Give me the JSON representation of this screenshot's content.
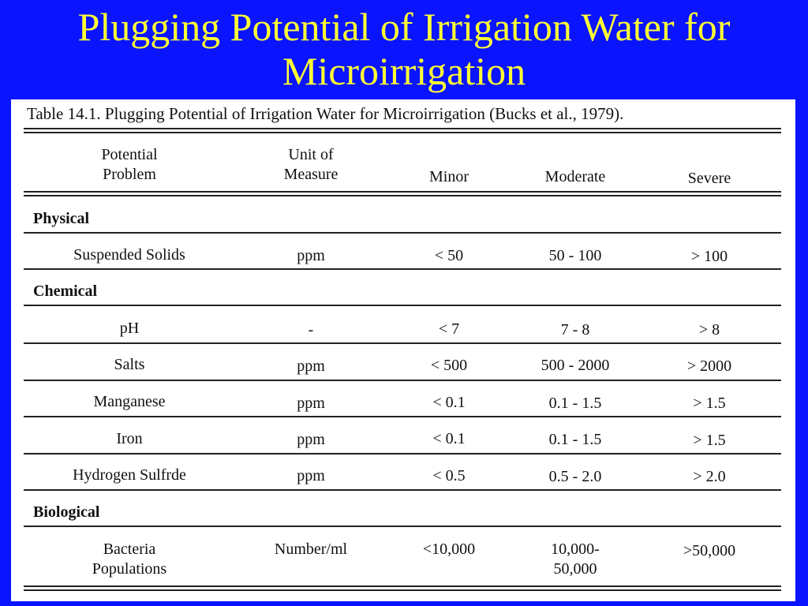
{
  "slide": {
    "title_line1": "Plugging Potential of Irrigation Water for",
    "title_line2": "Microirrigation"
  },
  "table": {
    "caption": "Table 14.1.  Plugging Potential of Irrigation Water for Microirrigation (Bucks et al., 1979).",
    "headers": {
      "problem_line1": "Potential",
      "problem_line2": "Problem",
      "unit_line1": "Unit of",
      "unit_line2": "Measure",
      "minor": "Minor",
      "moderate": "Moderate",
      "severe": "Severe"
    },
    "sections": {
      "physical": "Physical",
      "chemical": "Chemical",
      "biological": "Biological"
    },
    "rows": {
      "suspended_solids": [
        "Suspended Solids",
        "ppm",
        "< 50",
        "50 - 100",
        "> 100"
      ],
      "ph": [
        "pH",
        "-",
        "< 7",
        "7 - 8",
        "> 8"
      ],
      "salts": [
        "Salts",
        "ppm",
        "< 500",
        "500 - 2000",
        "> 2000"
      ],
      "manganese": [
        "Manganese",
        "ppm",
        "< 0.1",
        "0.1 - 1.5",
        "> 1.5"
      ],
      "iron": [
        "Iron",
        "ppm",
        "< 0.1",
        "0.1 - 1.5",
        "> 1.5"
      ],
      "hydrogen_sulfide": [
        "Hydrogen Sulfrde",
        "ppm",
        "< 0.5",
        "0.5 - 2.0",
        "> 2.0"
      ]
    },
    "bacteria": {
      "problem_line1": "Bacteria",
      "problem_line2": "Populations",
      "unit": "Number/ml",
      "minor": "<10,000",
      "moderate_line1": "10,000-",
      "moderate_line2": "50,000",
      "severe": ">50,000"
    }
  }
}
